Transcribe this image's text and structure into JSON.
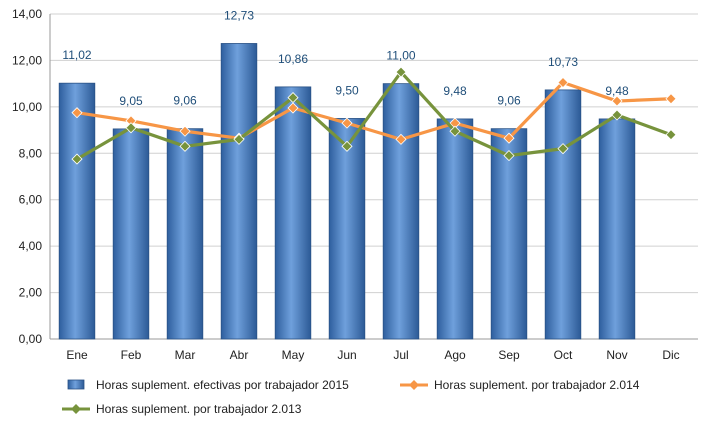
{
  "chart_data": {
    "type": "bar",
    "categories": [
      "Ene",
      "Feb",
      "Mar",
      "Abr",
      "May",
      "Jun",
      "Jul",
      "Ago",
      "Sep",
      "Oct",
      "Nov",
      "Dic"
    ],
    "ylim": [
      0,
      14
    ],
    "yticks": [
      "0,00",
      "2,00",
      "4,00",
      "6,00",
      "8,00",
      "10,00",
      "12,00",
      "14,00"
    ],
    "grid": true,
    "legend_position": "bottom",
    "series": [
      {
        "name": "Horas suplement. efectivas por trabajador 2015",
        "kind": "bar",
        "color": "#4f81bd",
        "values": [
          11.02,
          9.05,
          9.06,
          12.73,
          10.86,
          9.5,
          11.0,
          9.48,
          9.06,
          10.73,
          9.48,
          null
        ],
        "labels": [
          "11,02",
          "9,05",
          "9,06",
          "12,73",
          "10,86",
          "9,50",
          "11,00",
          "9,48",
          "9,06",
          "10,73",
          "9,48",
          ""
        ]
      },
      {
        "name": "Horas suplement. por trabajador 2.014",
        "kind": "line",
        "color": "#f79646",
        "values": [
          9.75,
          9.4,
          8.95,
          8.65,
          9.95,
          9.3,
          8.6,
          9.3,
          8.65,
          11.05,
          10.25,
          10.35
        ]
      },
      {
        "name": "Horas suplement. por trabajador 2.013",
        "kind": "line",
        "color": "#77933c",
        "values": [
          7.75,
          9.1,
          8.3,
          8.6,
          10.4,
          8.3,
          11.5,
          8.95,
          7.9,
          8.2,
          9.65,
          8.8
        ]
      }
    ]
  }
}
